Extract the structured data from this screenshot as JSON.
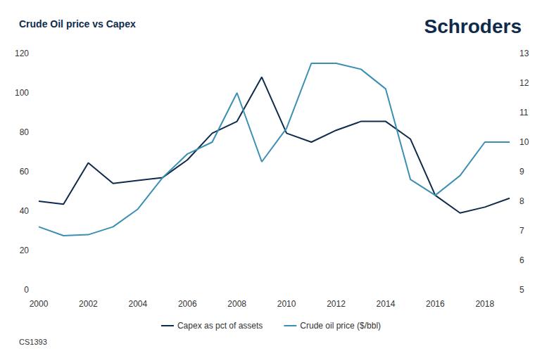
{
  "chart_data": {
    "type": "line",
    "title": "Crude Oil price vs Capex",
    "brand": "Schroders",
    "footnote": "CS1393",
    "categories": [
      "2000",
      null,
      "2002",
      null,
      "2004",
      null,
      "2006",
      null,
      "2008",
      null,
      "2010",
      null,
      "2012",
      null,
      "2014",
      null,
      "2016",
      null,
      "2018",
      null
    ],
    "series": [
      {
        "name": "Capex as pct of assets",
        "color": "#0f2b4c",
        "axis": "y2",
        "values": [
          8.0,
          7.9,
          9.3,
          8.6,
          8.7,
          8.8,
          9.4,
          10.3,
          10.7,
          12.2,
          10.3,
          10.0,
          10.4,
          10.7,
          10.7,
          10.1,
          8.2,
          7.6,
          7.8,
          8.1
        ]
      },
      {
        "name": "Crude oil price ($/bbl)",
        "color": "#3b8fb3",
        "axis": "y",
        "values": [
          32,
          27.5,
          28,
          32,
          41,
          57,
          69,
          75,
          100,
          65,
          82,
          115,
          115,
          112,
          102,
          56,
          48,
          58,
          75,
          75
        ]
      }
    ],
    "ylim": [
      0,
      120
    ],
    "yticks": [
      0,
      20,
      40,
      60,
      80,
      100,
      120
    ],
    "y2lim": [
      5,
      13
    ],
    "y2ticks": [
      5,
      6,
      7,
      8,
      9,
      10,
      11,
      12,
      13
    ],
    "grid": false,
    "legend": "bottom"
  }
}
